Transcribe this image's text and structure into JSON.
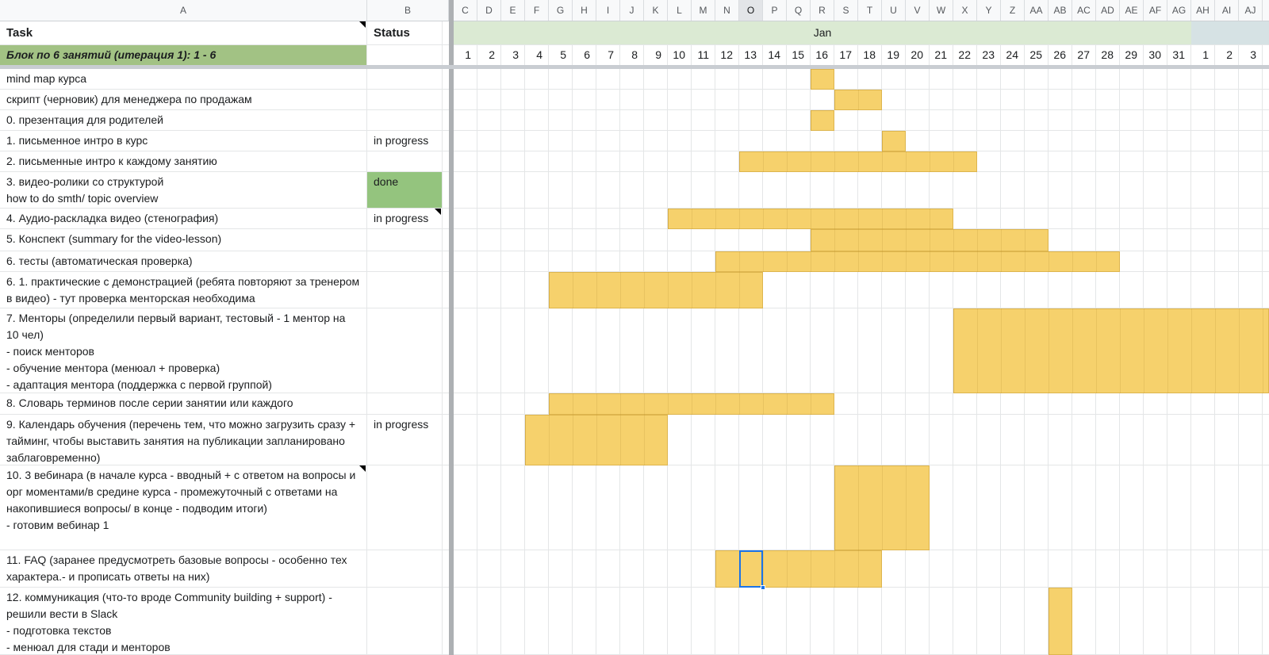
{
  "app": {
    "selected_column": "O"
  },
  "colors": {
    "bar_fill": "#F6D16C",
    "bar_border": "rgba(186,140,34,0.40)",
    "bar_gridline": "rgba(150,110,20,0.14)",
    "done_fill": "#94C47E",
    "block_fill": "#A2C284",
    "jan_band": "#DBEAD3",
    "feb_band": "#D6E2E4",
    "selection_blue": "#1A73E8"
  },
  "header_row": {
    "task": "Task",
    "status": "Status",
    "month_label": "Jan"
  },
  "block_row": {
    "title": "Блок по 6 занятий (итерация 1): 1 - 6"
  },
  "columns": {
    "frozen": [
      {
        "letter": "A"
      },
      {
        "letter": "B"
      }
    ],
    "days": [
      {
        "letter": "C",
        "label": "1"
      },
      {
        "letter": "D",
        "label": "2"
      },
      {
        "letter": "E",
        "label": "3"
      },
      {
        "letter": "F",
        "label": "4"
      },
      {
        "letter": "G",
        "label": "5"
      },
      {
        "letter": "H",
        "label": "6"
      },
      {
        "letter": "I",
        "label": "7"
      },
      {
        "letter": "J",
        "label": "8"
      },
      {
        "letter": "K",
        "label": "9"
      },
      {
        "letter": "L",
        "label": "10"
      },
      {
        "letter": "M",
        "label": "11"
      },
      {
        "letter": "N",
        "label": "12"
      },
      {
        "letter": "O",
        "label": "13"
      },
      {
        "letter": "P",
        "label": "14"
      },
      {
        "letter": "Q",
        "label": "15"
      },
      {
        "letter": "R",
        "label": "16"
      },
      {
        "letter": "S",
        "label": "17"
      },
      {
        "letter": "T",
        "label": "18"
      },
      {
        "letter": "U",
        "label": "19"
      },
      {
        "letter": "V",
        "label": "20"
      },
      {
        "letter": "W",
        "label": "21"
      },
      {
        "letter": "X",
        "label": "22"
      },
      {
        "letter": "Y",
        "label": "23"
      },
      {
        "letter": "Z",
        "label": "24"
      },
      {
        "letter": "AA",
        "label": "25"
      },
      {
        "letter": "AB",
        "label": "26"
      },
      {
        "letter": "AC",
        "label": "27"
      },
      {
        "letter": "AD",
        "label": "28"
      },
      {
        "letter": "AE",
        "label": "29"
      },
      {
        "letter": "AF",
        "label": "30"
      },
      {
        "letter": "AG",
        "label": "31"
      },
      {
        "letter": "AH",
        "label": "1"
      },
      {
        "letter": "AI",
        "label": "2"
      },
      {
        "letter": "AJ",
        "label": "3"
      }
    ]
  },
  "tasks": [
    {
      "name": "mind map курса",
      "status": "",
      "bar": {
        "start": 15,
        "span": 1
      }
    },
    {
      "name": "скрипт (черновик) для менеджера по продажам",
      "status": "",
      "bar": {
        "start": 16,
        "span": 2
      }
    },
    {
      "name": "0. презентация для родителей",
      "status": "",
      "bar": {
        "start": 15,
        "span": 1
      }
    },
    {
      "name": "1. письменное интро в курс",
      "status": "in progress",
      "bar": {
        "start": 18,
        "span": 1
      }
    },
    {
      "name": "2. письменные интро к каждому занятию",
      "status": "",
      "bar": {
        "start": 12,
        "span": 10
      }
    },
    {
      "name": "3. видео-ролики со структурой\nhow to do smth/ topic overview",
      "status": "done",
      "status_done_fill": true,
      "bar": null
    },
    {
      "name": "4. Аудио-раскладка видео (стенография)",
      "status": "in progress",
      "status_note": true,
      "bar": {
        "start": 9,
        "span": 12
      }
    },
    {
      "name": "5. Конспект (summary for the video-lesson)",
      "status": "",
      "bar": {
        "start": 15,
        "span": 10
      }
    },
    {
      "name": "6. тесты (автоматическая проверка)",
      "status": "",
      "bar": {
        "start": 11,
        "span": 17
      }
    },
    {
      "name": "6. 1. практические с демонстрацией (ребята повторяют за тренером в видео) - тут проверка менторская необходима",
      "status": "",
      "bar": {
        "start": 4,
        "span": 9
      }
    },
    {
      "name": "7. Менторы (определили первый вариант, тестовый - 1 ментор на 10 чел)\n- поиск менторов\n- обучение ментора (менюал + проверка)\n- адаптация ментора (поддержка с первой группой)",
      "status": "",
      "bar": {
        "start": 21,
        "span": 13,
        "bleed": true
      }
    },
    {
      "name": "8. Словарь терминов после серии занятии или каждого",
      "status": "",
      "bar": {
        "start": 4,
        "span": 12
      }
    },
    {
      "name": "9. Календарь обучения (перечень тем, что можно загрузить сразу + тайминг, чтобы выставить занятия на публикации запланировано заблаговременно)",
      "status": "in progress",
      "bar": {
        "start": 3,
        "span": 6
      }
    },
    {
      "name": "10. 3 вебинара (в начале курса - вводный + с ответом на вопросы и орг моментами/в средине курса - промежуточный с ответами на накопившиеся вопросы/ в конце - подводим итоги)\n- готовим вебинар 1",
      "status": "",
      "task_note": true,
      "bar": {
        "start": 16,
        "span": 4
      }
    },
    {
      "name": "11. FAQ (заранее предусмотреть базовые вопросы - особенно тех характера.- и прописать ответы на них)",
      "status": "",
      "bar": {
        "start": 11,
        "span": 7
      },
      "selected_col": 12
    },
    {
      "name": "12. коммуникация (что-то вроде Community building + support) - решили вести в Slack\n- подготовка текстов\n- менюал для стади и менторов",
      "status": "",
      "bar": {
        "start": 25,
        "span": 1
      }
    }
  ]
}
